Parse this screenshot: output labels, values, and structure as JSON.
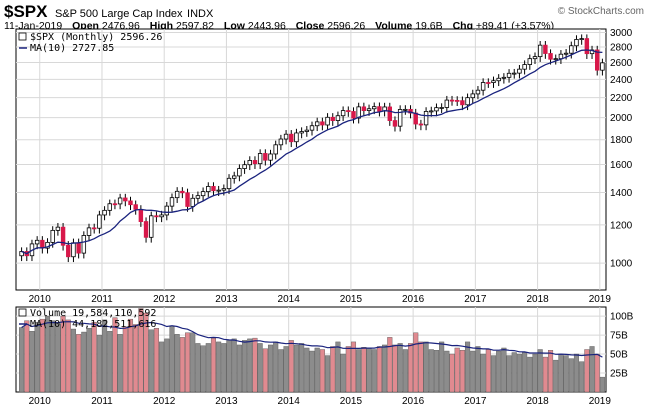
{
  "header": {
    "symbol": "$SPX",
    "name": "S&P 500 Large Cap Index",
    "exchange": "INDX",
    "brand": "© StockCharts.com",
    "date": "11-Jan-2019",
    "open_label": "Open",
    "open": "2476.96",
    "high_label": "High",
    "high": "2597.82",
    "low_label": "Low",
    "low": "2443.96",
    "close_label": "Close",
    "close": "2596.26",
    "volume_label": "Volume",
    "volume": "19.6B",
    "chg_label": "Chg",
    "chg": "+89.41 (+3.57%)"
  },
  "legend": {
    "price": "$SPX (Monthly) 2596.26",
    "ma": "MA(10) 2727.85",
    "volume": "Volume 19,584,110,592",
    "vol_ma": "MA(10) 44,182,511,616"
  },
  "colors": {
    "up": "#ffffff",
    "down": "#d8184a",
    "ma": "#1a237e",
    "grid": "#d8d8d8",
    "vol_up": "#8c8c8c",
    "vol_down": "#e08a90"
  },
  "chart_data": [
    {
      "type": "candlestick",
      "title": "$SPX (Monthly)",
      "scale": "log",
      "x": [
        "2009-09",
        "2009-10",
        "2009-11",
        "2009-12",
        "2010-01",
        "2010-02",
        "2010-03",
        "2010-04",
        "2010-05",
        "2010-06",
        "2010-07",
        "2010-08",
        "2010-09",
        "2010-10",
        "2010-11",
        "2010-12",
        "2011-01",
        "2011-02",
        "2011-03",
        "2011-04",
        "2011-05",
        "2011-06",
        "2011-07",
        "2011-08",
        "2011-09",
        "2011-10",
        "2011-11",
        "2011-12",
        "2012-01",
        "2012-02",
        "2012-03",
        "2012-04",
        "2012-05",
        "2012-06",
        "2012-07",
        "2012-08",
        "2012-09",
        "2012-10",
        "2012-11",
        "2012-12",
        "2013-01",
        "2013-02",
        "2013-03",
        "2013-04",
        "2013-05",
        "2013-06",
        "2013-07",
        "2013-08",
        "2013-09",
        "2013-10",
        "2013-11",
        "2013-12",
        "2014-01",
        "2014-02",
        "2014-03",
        "2014-04",
        "2014-05",
        "2014-06",
        "2014-07",
        "2014-08",
        "2014-09",
        "2014-10",
        "2014-11",
        "2014-12",
        "2015-01",
        "2015-02",
        "2015-03",
        "2015-04",
        "2015-05",
        "2015-06",
        "2015-07",
        "2015-08",
        "2015-09",
        "2015-10",
        "2015-11",
        "2015-12",
        "2016-01",
        "2016-02",
        "2016-03",
        "2016-04",
        "2016-05",
        "2016-06",
        "2016-07",
        "2016-08",
        "2016-09",
        "2016-10",
        "2016-11",
        "2016-12",
        "2017-01",
        "2017-02",
        "2017-03",
        "2017-04",
        "2017-05",
        "2017-06",
        "2017-07",
        "2017-08",
        "2017-09",
        "2017-10",
        "2017-11",
        "2017-12",
        "2018-01",
        "2018-02",
        "2018-03",
        "2018-04",
        "2018-05",
        "2018-06",
        "2018-07",
        "2018-08",
        "2018-09",
        "2018-10",
        "2018-11",
        "2018-12",
        "2019-01"
      ],
      "close": [
        1057,
        1036,
        1096,
        1115,
        1074,
        1104,
        1169,
        1187,
        1089,
        1031,
        1102,
        1049,
        1141,
        1183,
        1181,
        1258,
        1286,
        1327,
        1326,
        1364,
        1345,
        1321,
        1292,
        1219,
        1131,
        1253,
        1247,
        1258,
        1312,
        1366,
        1408,
        1398,
        1310,
        1362,
        1379,
        1406,
        1441,
        1412,
        1416,
        1426,
        1498,
        1515,
        1569,
        1598,
        1631,
        1606,
        1686,
        1633,
        1682,
        1757,
        1806,
        1848,
        1783,
        1859,
        1872,
        1884,
        1924,
        1960,
        1931,
        2003,
        1972,
        2018,
        2068,
        2059,
        1995,
        2105,
        2068,
        2086,
        2107,
        2063,
        2104,
        1972,
        1920,
        2079,
        2080,
        2044,
        1940,
        1932,
        2060,
        2065,
        2097,
        2099,
        2174,
        2171,
        2168,
        2126,
        2199,
        2239,
        2279,
        2364,
        2363,
        2384,
        2412,
        2423,
        2470,
        2472,
        2519,
        2575,
        2648,
        2674,
        2824,
        2714,
        2641,
        2648,
        2705,
        2718,
        2816,
        2902,
        2914,
        2712,
        2760,
        2507,
        2596
      ],
      "ma_last": 2727.85,
      "yticks": [
        1000,
        1200,
        1400,
        1600,
        1800,
        2000,
        2200,
        2400,
        2600,
        2800,
        3000
      ],
      "ylim": [
        880,
        3050
      ]
    },
    {
      "type": "bar",
      "title": "Volume",
      "unit": "billions",
      "values": [
        85,
        94,
        80,
        92,
        96,
        100,
        94,
        90,
        100,
        95,
        83,
        76,
        79,
        84,
        92,
        75,
        95,
        80,
        98,
        76,
        86,
        96,
        89,
        110,
        104,
        82,
        84,
        66,
        70,
        86,
        76,
        72,
        78,
        78,
        64,
        61,
        64,
        71,
        66,
        64,
        68,
        70,
        62,
        68,
        70,
        71,
        64,
        57,
        62,
        66,
        56,
        60,
        68,
        62,
        64,
        58,
        54,
        58,
        56,
        48,
        60,
        66,
        50,
        60,
        66,
        56,
        59,
        58,
        56,
        60,
        62,
        72,
        62,
        64,
        56,
        64,
        78,
        66,
        66,
        56,
        55,
        66,
        54,
        50,
        58,
        55,
        66,
        54,
        60,
        50,
        56,
        48,
        54,
        58,
        48,
        52,
        50,
        52,
        46,
        50,
        56,
        46,
        55,
        42,
        50,
        48,
        44,
        50,
        40,
        56,
        60,
        50,
        19.6
      ],
      "ma_last": 44.18,
      "yticks": [
        25,
        50,
        75,
        100
      ],
      "tick_labels": [
        "25B",
        "50B",
        "75B",
        "100B"
      ],
      "ylim": [
        0,
        112
      ]
    }
  ],
  "x_axis": {
    "years": [
      "2010",
      "2011",
      "2012",
      "2013",
      "2014",
      "2015",
      "2016",
      "2017",
      "2018",
      "2019"
    ]
  }
}
